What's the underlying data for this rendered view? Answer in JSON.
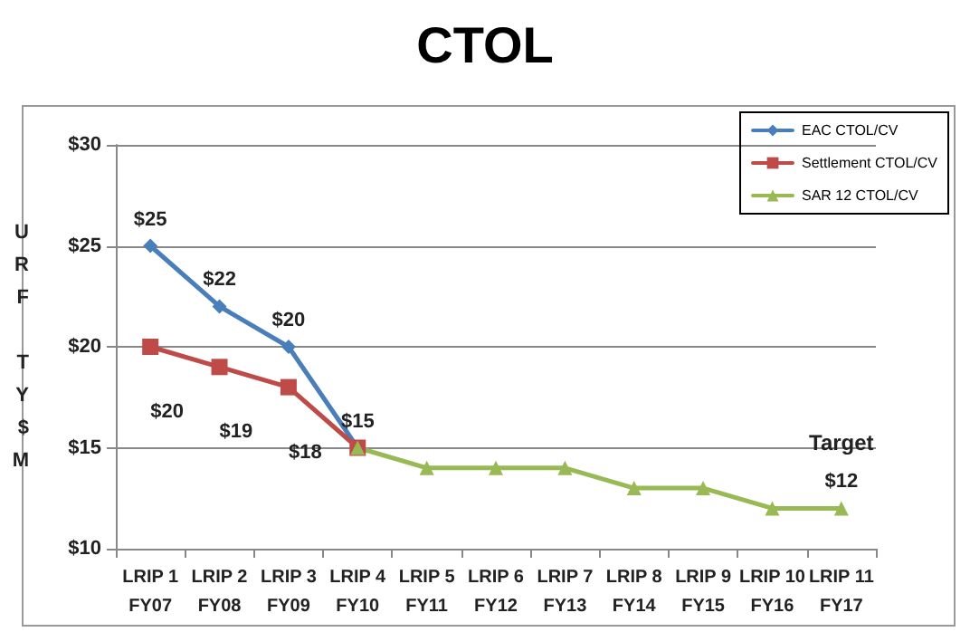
{
  "chart_data": {
    "type": "line",
    "title": "CTOL",
    "ylabel": "URF TY$M",
    "categories": [
      "LRIP 1\nFY07",
      "LRIP 2\nFY08",
      "LRIP 3\nFY09",
      "LRIP 4\nFY10",
      "LRIP 5\nFY11",
      "LRIP 6\nFY12",
      "LRIP 7\nFY13",
      "LRIP 8\nFY14",
      "LRIP 9\nFY15",
      "LRIP 10\nFY16",
      "LRIP 11\nFY17"
    ],
    "series": [
      {
        "name": "EAC CTOL/CV",
        "color": "#4a7ebb",
        "marker": "diamond",
        "values": [
          25,
          22,
          20,
          15,
          null,
          null,
          null,
          null,
          null,
          null,
          null
        ],
        "value_labels": [
          "$25",
          "$22",
          "$20",
          "$15",
          null,
          null,
          null,
          null,
          null,
          null,
          null
        ]
      },
      {
        "name": "Settlement CTOL/CV",
        "color": "#be4b48",
        "marker": "square",
        "values": [
          20,
          19,
          18,
          15,
          null,
          null,
          null,
          null,
          null,
          null,
          null
        ],
        "value_labels": [
          "$20",
          "$19",
          "$18",
          null,
          null,
          null,
          null,
          null,
          null,
          null,
          null
        ]
      },
      {
        "name": "SAR 12 CTOL/CV",
        "color": "#98b954",
        "marker": "triangle",
        "values": [
          null,
          null,
          null,
          15,
          14,
          14,
          14,
          13,
          13,
          12,
          12
        ],
        "value_labels": [
          null,
          null,
          null,
          null,
          null,
          null,
          null,
          null,
          null,
          null,
          "$12"
        ]
      }
    ],
    "annotations": [
      {
        "text": "Target",
        "x": "LRIP 11\nFY17",
        "y": 12
      }
    ],
    "ylim": [
      10,
      30
    ],
    "yticks": [
      {
        "value": 10,
        "label": "$10"
      },
      {
        "value": 15,
        "label": "$15"
      },
      {
        "value": 20,
        "label": "$20"
      },
      {
        "value": 25,
        "label": "$25"
      },
      {
        "value": 30,
        "label": "$30"
      }
    ],
    "grid": "y",
    "legend": "top right",
    "line_style": "solid"
  }
}
